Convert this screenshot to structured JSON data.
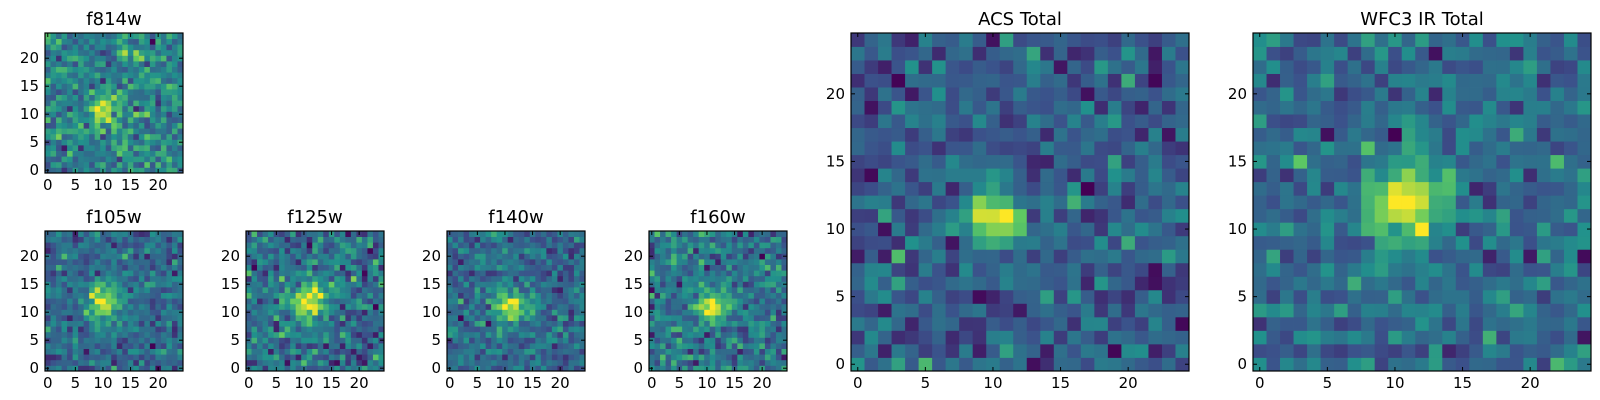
{
  "chart_data": [
    {
      "type": "heatmap",
      "title": "f814w",
      "colormap": "viridis",
      "grid_size": 25,
      "xlim": [
        -0.5,
        24.5
      ],
      "ylim": [
        -0.5,
        24.5
      ],
      "x_ticks": [
        0,
        5,
        10,
        15,
        20
      ],
      "y_ticks": [
        0,
        5,
        10,
        15,
        20
      ],
      "source_center": [
        10,
        11
      ],
      "source_strength": 0.8,
      "source_sigma": 1.6,
      "noise_level": 0.6,
      "seed": 11,
      "x_tick_labels": [
        "0",
        "5",
        "10",
        "15",
        "20"
      ],
      "y_tick_labels": [
        "0",
        "5",
        "10",
        "15",
        "20"
      ]
    },
    {
      "type": "heatmap",
      "title": "f105w",
      "colormap": "viridis",
      "grid_size": 25,
      "xlim": [
        -0.5,
        24.5
      ],
      "ylim": [
        -0.5,
        24.5
      ],
      "x_ticks": [
        0,
        5,
        10,
        15,
        20
      ],
      "y_ticks": [
        0,
        5,
        10,
        15,
        20
      ],
      "source_center": [
        10,
        12
      ],
      "source_strength": 0.9,
      "source_sigma": 2.2,
      "noise_level": 0.5,
      "seed": 22,
      "x_tick_labels": [
        "0",
        "5",
        "10",
        "15",
        "20"
      ],
      "y_tick_labels": [
        "0",
        "5",
        "10",
        "15",
        "20"
      ]
    },
    {
      "type": "heatmap",
      "title": "f125w",
      "colormap": "viridis",
      "grid_size": 25,
      "xlim": [
        -0.5,
        24.5
      ],
      "ylim": [
        -0.5,
        24.5
      ],
      "x_ticks": [
        0,
        5,
        10,
        15,
        20
      ],
      "y_ticks": [
        0,
        5,
        10,
        15,
        20
      ],
      "source_center": [
        11,
        12
      ],
      "source_strength": 0.9,
      "source_sigma": 2.2,
      "noise_level": 0.55,
      "seed": 33,
      "x_tick_labels": [
        "0",
        "5",
        "10",
        "15",
        "20"
      ],
      "y_tick_labels": [
        "0",
        "5",
        "10",
        "15",
        "20"
      ]
    },
    {
      "type": "heatmap",
      "title": "f140w",
      "colormap": "viridis",
      "grid_size": 25,
      "xlim": [
        -0.5,
        24.5
      ],
      "ylim": [
        -0.5,
        24.5
      ],
      "x_ticks": [
        0,
        5,
        10,
        15,
        20
      ],
      "y_ticks": [
        0,
        5,
        10,
        15,
        20
      ],
      "source_center": [
        11,
        11
      ],
      "source_strength": 0.9,
      "source_sigma": 2.2,
      "noise_level": 0.55,
      "seed": 44,
      "x_tick_labels": [
        "0",
        "5",
        "10",
        "15",
        "20"
      ],
      "y_tick_labels": [
        "0",
        "5",
        "10",
        "15",
        "20"
      ]
    },
    {
      "type": "heatmap",
      "title": "f160w",
      "colormap": "viridis",
      "grid_size": 25,
      "xlim": [
        -0.5,
        24.5
      ],
      "ylim": [
        -0.5,
        24.5
      ],
      "x_ticks": [
        0,
        5,
        10,
        15,
        20
      ],
      "y_ticks": [
        0,
        5,
        10,
        15,
        20
      ],
      "source_center": [
        11,
        11
      ],
      "source_strength": 1.0,
      "source_sigma": 1.8,
      "noise_level": 0.6,
      "seed": 55,
      "x_tick_labels": [
        "0",
        "5",
        "10",
        "15",
        "20"
      ],
      "y_tick_labels": [
        "0",
        "5",
        "10",
        "15",
        "20"
      ]
    },
    {
      "type": "heatmap",
      "title": "ACS Total",
      "colormap": "viridis",
      "grid_size": 25,
      "xlim": [
        -0.5,
        24.5
      ],
      "ylim": [
        -0.5,
        24.5
      ],
      "x_ticks": [
        0,
        5,
        10,
        15,
        20
      ],
      "y_ticks": [
        0,
        5,
        10,
        15,
        20
      ],
      "source_center": [
        10,
        11
      ],
      "source_strength": 1.0,
      "source_sigma": 1.6,
      "noise_level": 0.5,
      "seed": 66,
      "x_tick_labels": [
        "0",
        "5",
        "10",
        "15",
        "20"
      ],
      "y_tick_labels": [
        "0",
        "5",
        "10",
        "15",
        "20"
      ]
    },
    {
      "type": "heatmap",
      "title": "WFC3 IR Total",
      "colormap": "viridis",
      "grid_size": 25,
      "xlim": [
        -0.5,
        24.5
      ],
      "ylim": [
        -0.5,
        24.5
      ],
      "x_ticks": [
        0,
        5,
        10,
        15,
        20
      ],
      "y_ticks": [
        0,
        5,
        10,
        15,
        20
      ],
      "source_center": [
        11,
        12
      ],
      "source_strength": 0.9,
      "source_sigma": 2.0,
      "noise_level": 0.5,
      "seed": 77,
      "x_tick_labels": [
        "0",
        "5",
        "10",
        "15",
        "20"
      ],
      "y_tick_labels": [
        "0",
        "5",
        "10",
        "15",
        "20"
      ]
    }
  ]
}
